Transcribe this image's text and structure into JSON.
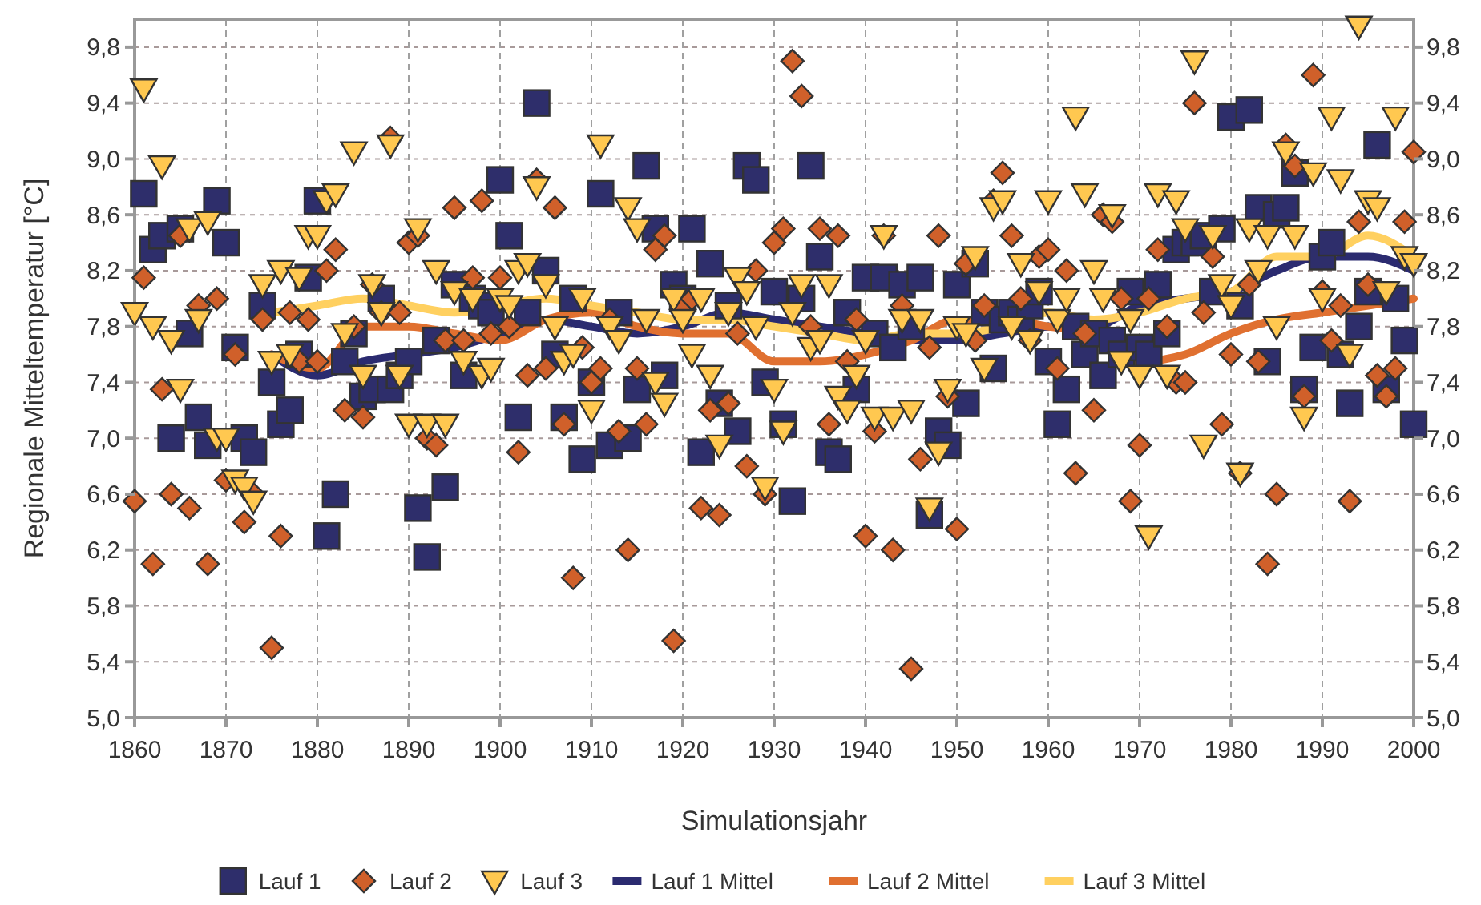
{
  "chart_data": {
    "type": "scatter",
    "xlabel": "Simulationsjahr",
    "ylabel": "Regionale Mitteltemperatur [°C]",
    "x": [
      1860,
      1861,
      1862,
      1863,
      1864,
      1865,
      1866,
      1867,
      1868,
      1869,
      1870,
      1871,
      1872,
      1873,
      1874,
      1875,
      1876,
      1877,
      1878,
      1879,
      1880,
      1881,
      1882,
      1883,
      1884,
      1885,
      1886,
      1887,
      1888,
      1889,
      1890,
      1891,
      1892,
      1893,
      1894,
      1895,
      1896,
      1897,
      1898,
      1899,
      1900,
      1901,
      1902,
      1903,
      1904,
      1905,
      1906,
      1907,
      1908,
      1909,
      1910,
      1911,
      1912,
      1913,
      1914,
      1915,
      1916,
      1917,
      1918,
      1919,
      1920,
      1921,
      1922,
      1923,
      1924,
      1925,
      1926,
      1927,
      1928,
      1929,
      1930,
      1931,
      1932,
      1933,
      1934,
      1935,
      1936,
      1937,
      1938,
      1939,
      1940,
      1941,
      1942,
      1943,
      1944,
      1945,
      1946,
      1947,
      1948,
      1949,
      1950,
      1951,
      1952,
      1953,
      1954,
      1955,
      1956,
      1957,
      1958,
      1959,
      1960,
      1961,
      1962,
      1963,
      1964,
      1965,
      1966,
      1967,
      1968,
      1969,
      1970,
      1971,
      1972,
      1973,
      1974,
      1975,
      1976,
      1977,
      1978,
      1979,
      1980,
      1981,
      1982,
      1983,
      1984,
      1985,
      1986,
      1987,
      1988,
      1989,
      1990,
      1991,
      1992,
      1993,
      1994,
      1995,
      1996,
      1997,
      1998,
      1999,
      2000
    ],
    "series": [
      {
        "name": "Lauf 1",
        "marker": "square",
        "color": "#2e2e6b",
        "values": [
          null,
          8.75,
          8.35,
          8.45,
          7.0,
          8.5,
          7.75,
          7.15,
          6.95,
          8.7,
          8.4,
          7.65,
          7.0,
          6.9,
          7.95,
          7.4,
          7.1,
          7.2,
          7.6,
          8.15,
          8.7,
          6.3,
          6.6,
          7.55,
          7.75,
          7.3,
          7.35,
          8.0,
          7.35,
          7.45,
          7.55,
          6.5,
          6.15,
          7.7,
          6.65,
          8.1,
          7.45,
          8.0,
          7.95,
          7.9,
          8.85,
          8.45,
          7.15,
          7.9,
          9.4,
          8.2,
          7.6,
          7.15,
          8.0,
          6.85,
          7.4,
          8.75,
          6.95,
          7.9,
          7.0,
          7.35,
          8.95,
          8.5,
          7.45,
          8.1,
          8.0,
          8.5,
          6.9,
          8.25,
          7.25,
          7.95,
          7.05,
          8.95,
          8.85,
          7.4,
          8.05,
          7.1,
          6.55,
          8.0,
          8.95,
          8.3,
          6.9,
          6.85,
          7.9,
          7.35,
          8.15,
          7.75,
          8.15,
          7.65,
          8.1,
          7.8,
          8.15,
          6.45,
          7.05,
          6.95,
          8.1,
          7.25,
          8.25,
          7.9,
          7.5,
          7.85,
          7.9,
          7.85,
          7.95,
          8.05,
          7.55,
          7.1,
          7.35,
          7.8,
          7.6,
          7.75,
          7.45,
          7.7,
          7.6,
          8.05,
          7.65,
          7.6,
          8.1,
          7.75,
          8.35,
          8.4,
          8.4,
          8.45,
          8.05,
          8.5,
          9.3,
          7.95,
          9.35,
          8.65,
          7.55,
          8.6,
          8.65,
          8.9,
          7.35,
          7.65,
          8.3,
          8.4,
          7.6,
          7.25,
          7.8,
          8.05,
          9.1,
          7.35,
          8.0,
          7.7,
          7.1
        ]
      },
      {
        "name": "Lauf 2",
        "marker": "diamond",
        "color": "#d0602a",
        "values": [
          6.55,
          8.15,
          6.1,
          7.35,
          6.6,
          8.45,
          6.5,
          7.95,
          6.1,
          8.0,
          6.7,
          7.6,
          6.4,
          6.6,
          7.85,
          5.5,
          6.3,
          7.9,
          7.55,
          7.85,
          7.55,
          8.2,
          8.35,
          7.2,
          7.8,
          7.15,
          8.1,
          7.9,
          9.15,
          7.9,
          8.4,
          8.45,
          7.0,
          6.95,
          7.7,
          8.65,
          7.7,
          8.15,
          8.7,
          7.75,
          8.15,
          7.8,
          6.9,
          7.45,
          8.85,
          7.5,
          8.65,
          7.1,
          6.0,
          7.65,
          7.4,
          7.5,
          7.85,
          7.05,
          6.2,
          7.5,
          7.1,
          8.35,
          8.45,
          5.55,
          7.95,
          8.0,
          6.5,
          7.2,
          6.45,
          7.25,
          7.75,
          6.8,
          8.2,
          6.6,
          8.4,
          8.5,
          9.7,
          9.45,
          7.8,
          8.5,
          7.1,
          8.45,
          7.55,
          7.85,
          6.3,
          7.05,
          8.45,
          6.2,
          7.95,
          5.35,
          6.85,
          7.65,
          8.45,
          7.3,
          6.35,
          8.25,
          7.7,
          7.95,
          8.7,
          8.9,
          8.45,
          8.0,
          7.7,
          8.3,
          8.35,
          7.5,
          8.2,
          6.75,
          7.75,
          7.2,
          8.6,
          8.55,
          8.0,
          6.55,
          6.95,
          8.0,
          8.35,
          7.8,
          7.4,
          7.4,
          9.4,
          7.9,
          8.3,
          7.1,
          7.6,
          6.75,
          8.1,
          7.55,
          6.1,
          6.6,
          9.1,
          8.95,
          7.3,
          9.6,
          8.05,
          7.7,
          7.95,
          6.55,
          8.55,
          8.1,
          7.45,
          7.3,
          7.5,
          8.55,
          9.05
        ]
      },
      {
        "name": "Lauf 3",
        "marker": "triangle",
        "color": "#ffc850",
        "values": [
          7.9,
          9.5,
          7.8,
          8.95,
          7.7,
          7.35,
          8.5,
          7.85,
          8.55,
          7.0,
          7.0,
          6.7,
          6.65,
          6.55,
          8.1,
          7.55,
          8.2,
          7.6,
          8.15,
          8.45,
          8.45,
          8.7,
          8.75,
          7.75,
          9.05,
          7.45,
          8.1,
          7.9,
          9.1,
          7.45,
          7.1,
          8.5,
          7.1,
          8.2,
          7.1,
          8.05,
          7.55,
          8.0,
          7.45,
          7.5,
          8.0,
          7.95,
          8.2,
          8.25,
          8.8,
          8.1,
          7.8,
          7.55,
          7.6,
          8.0,
          7.2,
          9.1,
          7.8,
          7.7,
          8.65,
          8.5,
          7.85,
          7.4,
          7.25,
          8.0,
          7.85,
          7.6,
          8.0,
          7.45,
          6.95,
          7.9,
          8.15,
          8.05,
          7.8,
          6.65,
          7.35,
          7.05,
          7.9,
          8.1,
          7.65,
          7.7,
          8.1,
          7.3,
          7.2,
          7.45,
          7.7,
          7.15,
          8.45,
          7.15,
          7.85,
          7.2,
          7.85,
          6.5,
          6.9,
          7.35,
          7.8,
          7.75,
          8.3,
          7.5,
          8.65,
          8.7,
          7.8,
          8.25,
          7.7,
          8.05,
          8.7,
          7.85,
          8.0,
          9.3,
          8.75,
          8.2,
          8.0,
          8.6,
          7.55,
          7.85,
          7.45,
          6.3,
          8.75,
          7.45,
          8.7,
          8.5,
          9.7,
          6.95,
          8.45,
          8.1,
          7.95,
          6.75,
          8.5,
          8.2,
          8.45,
          7.8,
          9.05,
          8.45,
          7.15,
          8.9,
          8.0,
          9.3,
          8.85,
          7.6,
          9.95,
          8.7,
          8.65,
          8.05,
          9.3,
          8.3,
          8.25
        ]
      },
      {
        "name": "Lauf 1 Mittel",
        "type": "line",
        "color": "#2b2b70",
        "x": [
          1875,
          1880,
          1885,
          1890,
          1895,
          1900,
          1905,
          1910,
          1915,
          1920,
          1925,
          1930,
          1935,
          1940,
          1945,
          1950,
          1955,
          1960,
          1965,
          1970,
          1975,
          1980,
          1985,
          1990,
          1995,
          2000
        ],
        "values": [
          7.6,
          7.45,
          7.55,
          7.6,
          7.65,
          7.75,
          7.85,
          7.8,
          7.75,
          7.8,
          7.9,
          7.85,
          7.8,
          7.75,
          7.7,
          7.7,
          7.75,
          7.8,
          7.8,
          7.95,
          8.0,
          8.05,
          8.2,
          8.3,
          8.3,
          8.2
        ]
      },
      {
        "name": "Lauf 2 Mittel",
        "type": "line",
        "color": "#e07030",
        "x": [
          1875,
          1880,
          1885,
          1890,
          1895,
          1900,
          1905,
          1910,
          1915,
          1920,
          1925,
          1930,
          1935,
          1940,
          1945,
          1950,
          1955,
          1960,
          1965,
          1970,
          1975,
          1980,
          1985,
          1990,
          1995,
          2000
        ],
        "values": [
          7.6,
          7.5,
          7.8,
          7.8,
          7.75,
          7.7,
          7.85,
          7.9,
          7.8,
          7.75,
          7.75,
          7.55,
          7.55,
          7.6,
          7.7,
          7.85,
          7.85,
          7.8,
          7.75,
          7.55,
          7.6,
          7.75,
          7.85,
          7.9,
          7.95,
          8.0
        ]
      },
      {
        "name": "Lauf 3 Mittel",
        "type": "line",
        "color": "#ffd060",
        "x": [
          1875,
          1880,
          1885,
          1890,
          1895,
          1900,
          1905,
          1910,
          1915,
          1920,
          1925,
          1930,
          1935,
          1940,
          1945,
          1950,
          1955,
          1960,
          1965,
          1970,
          1975,
          1980,
          1985,
          1990,
          1995,
          2000
        ],
        "values": [
          7.9,
          7.95,
          8.0,
          7.95,
          7.9,
          7.95,
          8.0,
          7.95,
          7.9,
          7.85,
          7.85,
          7.8,
          7.75,
          7.7,
          7.75,
          7.75,
          7.8,
          7.9,
          7.85,
          7.9,
          8.0,
          8.05,
          8.3,
          8.3,
          8.45,
          8.3
        ]
      }
    ],
    "xlim": [
      1860,
      2000
    ],
    "xticks": [
      1860,
      1870,
      1880,
      1890,
      1900,
      1910,
      1920,
      1930,
      1940,
      1950,
      1960,
      1970,
      1980,
      1990,
      2000
    ],
    "ylim": [
      5.0,
      10.0
    ],
    "yticks": [
      {
        "value": 5.0,
        "label": "5,0"
      },
      {
        "value": 5.4,
        "label": "5,4"
      },
      {
        "value": 5.8,
        "label": "5,8"
      },
      {
        "value": 6.2,
        "label": "6,2"
      },
      {
        "value": 6.6,
        "label": "6,6"
      },
      {
        "value": 7.0,
        "label": "7,0"
      },
      {
        "value": 7.4,
        "label": "7,4"
      },
      {
        "value": 7.8,
        "label": "7,8"
      },
      {
        "value": 8.2,
        "label": "8,2"
      },
      {
        "value": 8.6,
        "label": "8,6"
      },
      {
        "value": 9.0,
        "label": "9,0"
      },
      {
        "value": 9.4,
        "label": "9,4"
      },
      {
        "value": 9.8,
        "label": "9,8"
      }
    ],
    "y2lim": [
      5.0,
      10.0
    ],
    "y2ticks": [
      {
        "value": 5.0,
        "label": "5,0"
      },
      {
        "value": 5.4,
        "label": "5,4"
      },
      {
        "value": 5.8,
        "label": "5,8"
      },
      {
        "value": 6.2,
        "label": "6,2"
      },
      {
        "value": 6.6,
        "label": "6,6"
      },
      {
        "value": 7.0,
        "label": "7,0"
      },
      {
        "value": 7.4,
        "label": "7,4"
      },
      {
        "value": 7.8,
        "label": "7,8"
      },
      {
        "value": 8.2,
        "label": "8,2"
      },
      {
        "value": 8.6,
        "label": "8,6"
      },
      {
        "value": 9.0,
        "label": "9,0"
      },
      {
        "value": 9.4,
        "label": "9,4"
      },
      {
        "value": 9.8,
        "label": "9,8"
      }
    ],
    "grid": true,
    "legend": "bottom",
    "line_style": "solid"
  }
}
